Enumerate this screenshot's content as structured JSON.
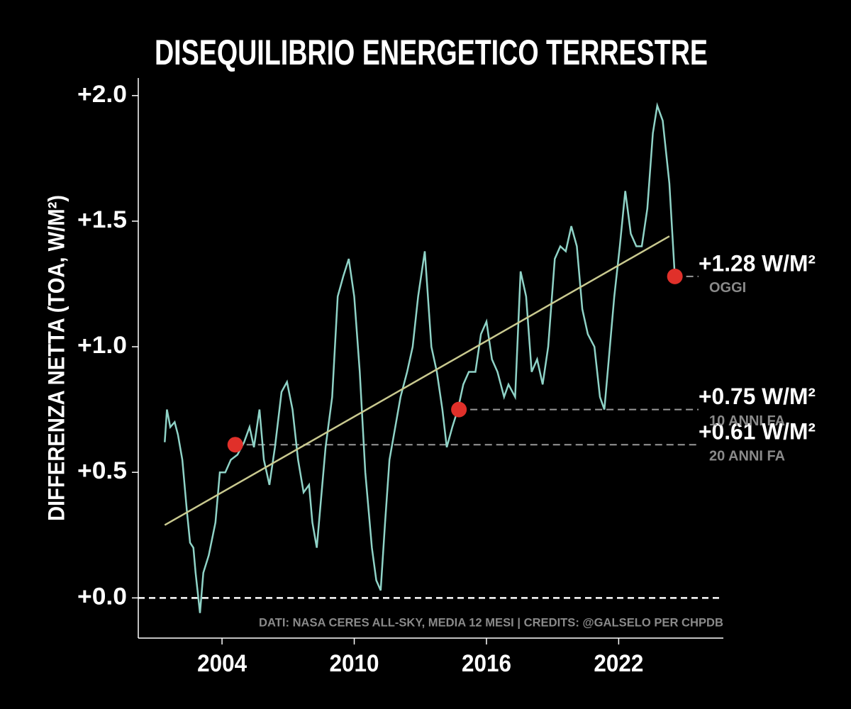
{
  "chart_data": {
    "type": "line",
    "title": "DISEQUILIBRIO ENERGETICO TERRESTRE",
    "y_label": "DIFFERENZA NETTA (TOA, W/M²)",
    "source": "DATI: NASA CERES ALL-SKY, MEDIA 12 MESI | CREDITS: @GALSELO PER CHPDB",
    "xlim": [
      2000.2,
      2026.75
    ],
    "ylim": [
      -0.16,
      2.07
    ],
    "xticks": [
      2004,
      2010,
      2016,
      2022
    ],
    "yticks": [
      {
        "value": 0,
        "label": "+0.0"
      },
      {
        "value": 0.5,
        "label": "+0.5"
      },
      {
        "value": 1,
        "label": "+1.0"
      },
      {
        "value": 1.5,
        "label": "+1.5"
      },
      {
        "value": 2,
        "label": "+2.0"
      }
    ],
    "reference_line": 0,
    "x": [
      2001.4,
      2001.5,
      2001.65,
      2001.85,
      2002.0,
      2002.2,
      2002.4,
      2002.55,
      2002.7,
      2002.8,
      2003.0,
      2003.15,
      2003.4,
      2003.7,
      2003.9,
      2004.15,
      2004.4,
      2004.7,
      2005.0,
      2005.25,
      2005.45,
      2005.7,
      2005.9,
      2006.15,
      2006.4,
      2006.7,
      2006.95,
      2007.2,
      2007.45,
      2007.7,
      2007.95,
      2008.1,
      2008.3,
      2008.5,
      2008.7,
      2009.0,
      2009.25,
      2009.5,
      2009.75,
      2010.0,
      2010.25,
      2010.5,
      2010.8,
      2011.0,
      2011.2,
      2011.4,
      2011.6,
      2011.9,
      2012.1,
      2012.4,
      2012.65,
      2012.9,
      2013.2,
      2013.5,
      2013.75,
      2014.0,
      2014.2,
      2014.45,
      2014.7,
      2014.95,
      2015.2,
      2015.5,
      2015.75,
      2016.0,
      2016.25,
      2016.5,
      2016.8,
      2017.0,
      2017.3,
      2017.55,
      2017.8,
      2018.05,
      2018.3,
      2018.55,
      2018.8,
      2019.1,
      2019.35,
      2019.6,
      2019.85,
      2020.1,
      2020.35,
      2020.6,
      2020.9,
      2021.15,
      2021.35,
      2021.5,
      2021.8,
      2022.05,
      2022.3,
      2022.55,
      2022.8,
      2023.05,
      2023.3,
      2023.55,
      2023.75,
      2024.0,
      2024.3,
      2024.55
    ],
    "series": [
      {
        "name": "Differenza netta",
        "color": "#8fd3c7",
        "values": [
          0.62,
          0.75,
          0.68,
          0.7,
          0.65,
          0.55,
          0.35,
          0.22,
          0.2,
          0.1,
          -0.06,
          0.1,
          0.17,
          0.3,
          0.5,
          0.5,
          0.55,
          0.57,
          0.62,
          0.68,
          0.6,
          0.75,
          0.55,
          0.45,
          0.6,
          0.82,
          0.86,
          0.75,
          0.55,
          0.42,
          0.45,
          0.3,
          0.2,
          0.4,
          0.6,
          0.8,
          1.2,
          1.28,
          1.35,
          1.2,
          0.9,
          0.5,
          0.2,
          0.07,
          0.03,
          0.3,
          0.55,
          0.7,
          0.8,
          0.9,
          1.0,
          1.2,
          1.38,
          1.0,
          0.9,
          0.75,
          0.6,
          0.68,
          0.75,
          0.85,
          0.9,
          0.9,
          1.05,
          1.1,
          0.95,
          0.9,
          0.8,
          0.85,
          0.8,
          1.3,
          1.2,
          0.9,
          0.95,
          0.85,
          1.0,
          1.35,
          1.4,
          1.38,
          1.48,
          1.4,
          1.15,
          1.05,
          1.0,
          0.8,
          0.75,
          0.9,
          1.2,
          1.4,
          1.62,
          1.45,
          1.4,
          1.4,
          1.55,
          1.85,
          1.96,
          1.9,
          1.65,
          1.28
        ]
      }
    ],
    "trend": {
      "x": [
        2001.4,
        2024.3
      ],
      "values": [
        0.29,
        1.44
      ],
      "color": "#c9c98f"
    },
    "highlights": [
      {
        "x": 2004.6,
        "value": 0.61,
        "label": "+0.61 W/M²",
        "note": "20 ANNI FA"
      },
      {
        "x": 2014.75,
        "value": 0.75,
        "label": "+0.75 W/M²",
        "note": "10 ANNI FA"
      },
      {
        "x": 2024.55,
        "value": 1.28,
        "label": "+1.28 W/M²",
        "note": "OGGI"
      }
    ],
    "highlight_color": "#e0302a"
  }
}
